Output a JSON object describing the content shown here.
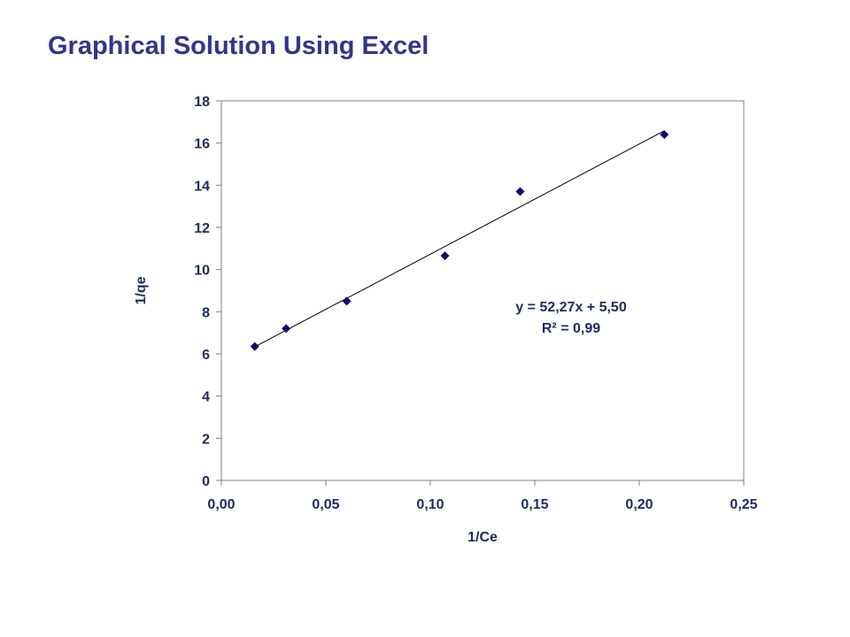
{
  "page": {
    "title": "Graphical Solution Using Excel"
  },
  "chart_data": {
    "type": "scatter",
    "xlabel": "1/Ce",
    "ylabel": "1/qe",
    "xlim": [
      0,
      0.25
    ],
    "ylim": [
      0,
      18
    ],
    "x_ticks": [
      "0,00",
      "0,05",
      "0,10",
      "0,15",
      "0,20",
      "0,25"
    ],
    "y_ticks": [
      "0",
      "2",
      "4",
      "6",
      "8",
      "10",
      "12",
      "14",
      "16",
      "18"
    ],
    "grid": false,
    "legend": "none",
    "series": [
      {
        "x": [
          0.016,
          0.031,
          0.06,
          0.107,
          0.143,
          0.212
        ],
        "y": [
          6.35,
          7.2,
          8.5,
          10.65,
          13.7,
          16.4
        ],
        "marker": "diamond",
        "color": "#0b0b6e"
      }
    ],
    "trendline": {
      "type": "linear",
      "slope": 52.27,
      "intercept": 5.5,
      "color": "#000000"
    },
    "annotations": [
      "y = 52,27x + 5,50",
      "R² = 0,99"
    ]
  }
}
